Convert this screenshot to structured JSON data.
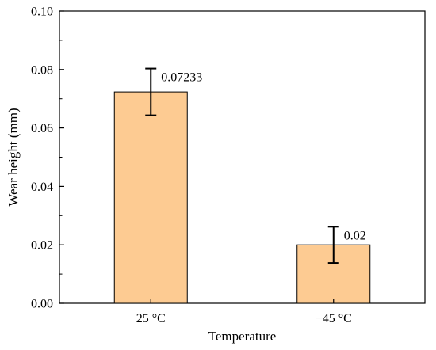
{
  "chart_data": {
    "type": "bar",
    "title": "",
    "xlabel": "Temperature",
    "ylabel": "Wear height (mm)",
    "categories": [
      "25 °C",
      "−45 °C"
    ],
    "values": [
      0.07233,
      0.02
    ],
    "error_bars": [
      0.008,
      0.0062
    ],
    "data_labels": [
      "0.07233",
      "0.02"
    ],
    "ylim": [
      0,
      0.1
    ],
    "yticks": [
      "0.00",
      "0.02",
      "0.04",
      "0.06",
      "0.08",
      "0.10"
    ],
    "grid": false,
    "bar_color": "#FDCB92",
    "bar_edge_color": "#000000"
  }
}
